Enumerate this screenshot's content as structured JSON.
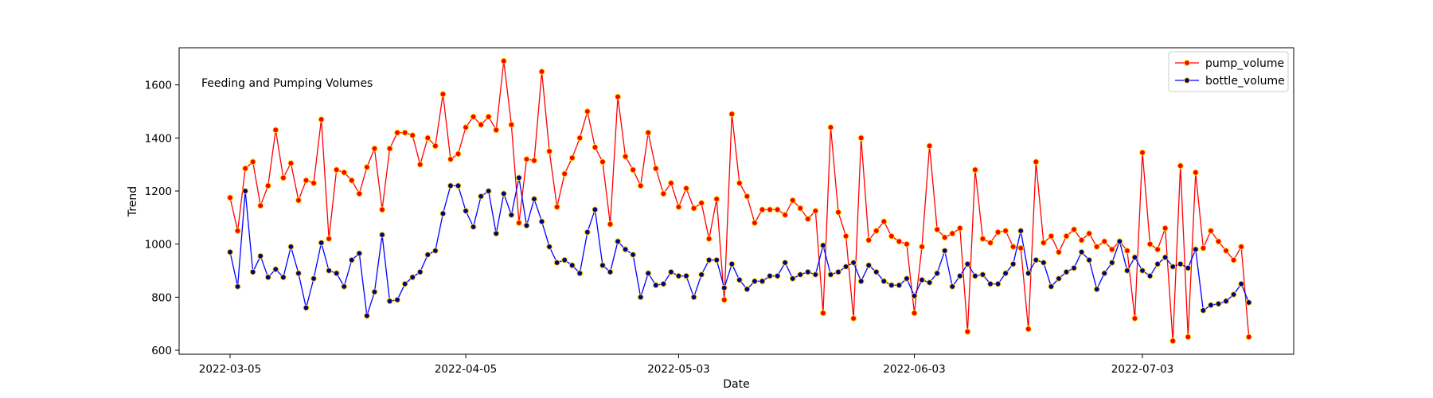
{
  "chart_data": {
    "type": "line",
    "annotation": "Feeding and Pumping Volumes",
    "xlabel": "Date",
    "ylabel": "Trend",
    "ylim": [
      585,
      1740
    ],
    "y_ticks": [
      600,
      800,
      1000,
      1200,
      1400,
      1600
    ],
    "x_ticks": [
      {
        "label": "2022-03-05",
        "index": 0
      },
      {
        "label": "2022-04-05",
        "index": 31
      },
      {
        "label": "2022-05-03",
        "index": 59
      },
      {
        "label": "2022-06-03",
        "index": 90
      },
      {
        "label": "2022-07-03",
        "index": 120
      }
    ],
    "x_start": "2022-03-05",
    "legend_position": "top-right",
    "series": [
      {
        "name": "pump_volume",
        "color": "#ff0000",
        "marker_fill": "#ff0000",
        "marker_edge": "#ffd700",
        "values": [
          1175,
          1050,
          1285,
          1310,
          1145,
          1220,
          1430,
          1250,
          1305,
          1165,
          1240,
          1230,
          1470,
          1020,
          1280,
          1270,
          1240,
          1190,
          1290,
          1360,
          1130,
          1360,
          1420,
          1420,
          1410,
          1300,
          1400,
          1370,
          1565,
          1320,
          1340,
          1440,
          1480,
          1450,
          1480,
          1430,
          1690,
          1450,
          1080,
          1320,
          1315,
          1650,
          1350,
          1140,
          1265,
          1325,
          1400,
          1500,
          1365,
          1310,
          1075,
          1555,
          1330,
          1280,
          1220,
          1420,
          1285,
          1190,
          1230,
          1140,
          1210,
          1135,
          1155,
          1020,
          1170,
          790,
          1490,
          1230,
          1180,
          1080,
          1130,
          1130,
          1130,
          1110,
          1165,
          1135,
          1095,
          1125,
          740,
          1440,
          1120,
          1030,
          720,
          1400,
          1015,
          1050,
          1085,
          1030,
          1010,
          1000,
          740,
          990,
          1370,
          1055,
          1025,
          1040,
          1060,
          670,
          1280,
          1020,
          1005,
          1045,
          1050,
          990,
          985,
          680,
          1310,
          1005,
          1030,
          970,
          1030,
          1055,
          1015,
          1040,
          990,
          1010,
          980,
          1010,
          975,
          720,
          1345,
          1000,
          980,
          1060,
          635,
          1295,
          650,
          1270,
          985,
          1050,
          1010,
          975,
          940,
          990,
          650
        ]
      },
      {
        "name": "bottle_volume",
        "color": "#0000ff",
        "marker_fill": "#00008b",
        "marker_edge": "#ffd700",
        "values": [
          970,
          840,
          1200,
          895,
          955,
          875,
          905,
          875,
          990,
          890,
          760,
          870,
          1005,
          900,
          890,
          840,
          940,
          965,
          730,
          820,
          1035,
          785,
          790,
          850,
          875,
          895,
          960,
          975,
          1115,
          1220,
          1220,
          1125,
          1065,
          1180,
          1200,
          1040,
          1190,
          1110,
          1250,
          1070,
          1170,
          1085,
          990,
          930,
          940,
          920,
          890,
          1045,
          1130,
          920,
          895,
          1010,
          980,
          960,
          800,
          890,
          845,
          850,
          895,
          880,
          880,
          800,
          885,
          940,
          940,
          835,
          925,
          865,
          830,
          860,
          860,
          880,
          880,
          930,
          870,
          885,
          895,
          885,
          995,
          885,
          895,
          915,
          930,
          860,
          920,
          895,
          860,
          845,
          845,
          870,
          805,
          865,
          855,
          890,
          975,
          840,
          880,
          925,
          880,
          885,
          850,
          850,
          890,
          925,
          1050,
          890,
          940,
          930,
          840,
          870,
          895,
          910,
          970,
          940,
          830,
          890,
          930,
          1010,
          900,
          950,
          900,
          880,
          925,
          950,
          915,
          925,
          910,
          980,
          750,
          770,
          775,
          785,
          810,
          850,
          780
        ]
      }
    ]
  }
}
